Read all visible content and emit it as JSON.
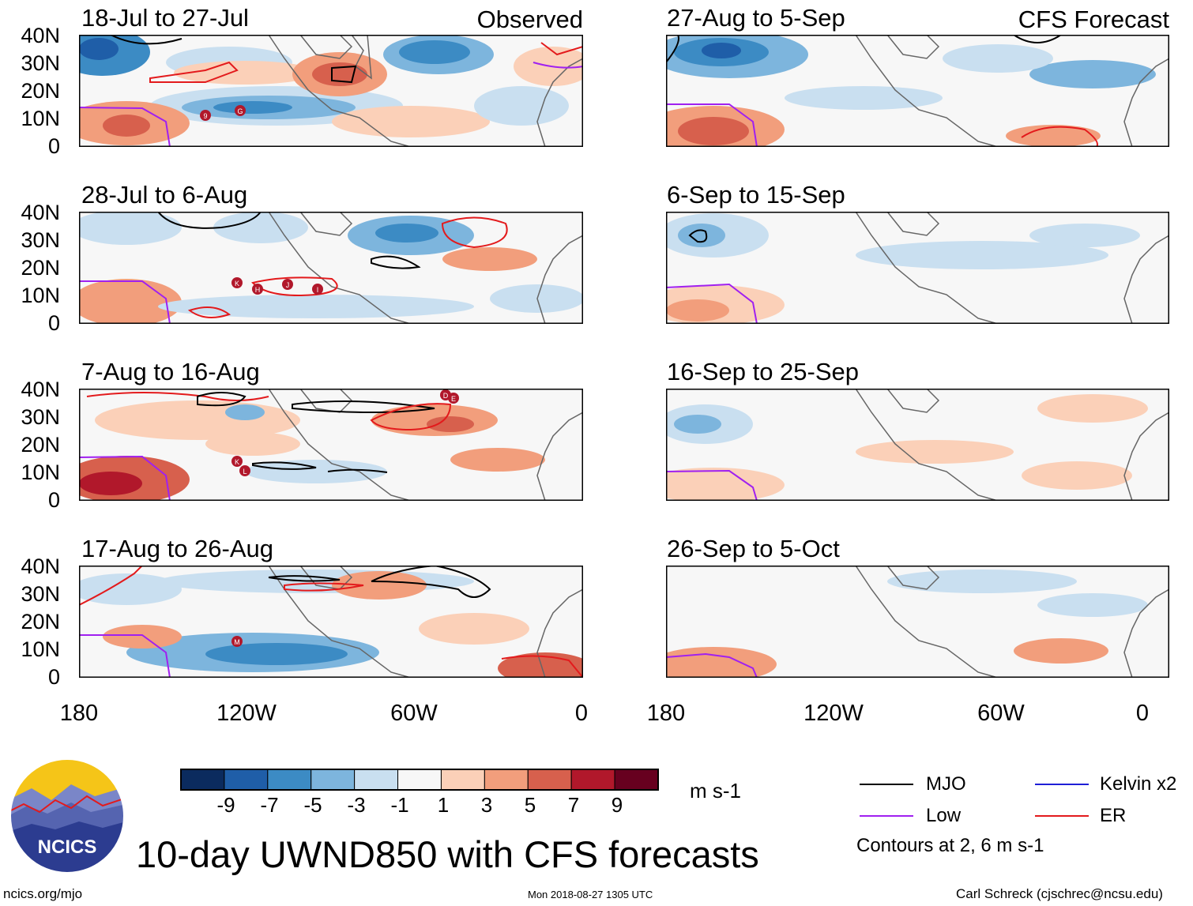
{
  "panels_left": [
    {
      "id": "p1",
      "title": "18-Jul to 27-Jul",
      "tag": "Observed"
    },
    {
      "id": "p2",
      "title": "28-Jul to 6-Aug",
      "tag": ""
    },
    {
      "id": "p3",
      "title": "7-Aug to 16-Aug",
      "tag": ""
    },
    {
      "id": "p4",
      "title": "17-Aug to 26-Aug",
      "tag": ""
    }
  ],
  "panels_right": [
    {
      "id": "p5",
      "title": "27-Aug to 5-Sep",
      "tag": "CFS Forecast"
    },
    {
      "id": "p6",
      "title": "6-Sep to 15-Sep",
      "tag": ""
    },
    {
      "id": "p7",
      "title": "16-Sep to 25-Sep",
      "tag": ""
    },
    {
      "id": "p8",
      "title": "26-Sep to 5-Oct",
      "tag": ""
    }
  ],
  "lat_labels": [
    "40N",
    "30N",
    "20N",
    "10N",
    "0"
  ],
  "lon_labels": [
    "180",
    "120W",
    "60W",
    "0"
  ],
  "storm_markers": {
    "p1": [
      "9",
      "G"
    ],
    "p2": [
      "K",
      "H",
      "J",
      "I"
    ],
    "p3": [
      "D",
      "E",
      "K",
      "L"
    ],
    "p4": [
      "M"
    ]
  },
  "colorbar": {
    "labels": [
      "-9",
      "-7",
      "-5",
      "-3",
      "-1",
      "1",
      "3",
      "5",
      "7",
      "9"
    ],
    "colors": [
      "#0b2b5e",
      "#1f5ea8",
      "#3c8bc4",
      "#7db5dd",
      "#c9dff0",
      "#f7f7f7",
      "#fbd0b8",
      "#f29e7c",
      "#d7604d",
      "#b1182b",
      "#67001f"
    ],
    "units": "m s-1"
  },
  "legend": {
    "items": [
      {
        "label": "MJO",
        "color": "#000000"
      },
      {
        "label": "Kelvin x2",
        "color": "#1f1fd6"
      },
      {
        "label": "Low",
        "color": "#a020f0"
      },
      {
        "label": "ER",
        "color": "#e31a1c"
      }
    ],
    "note": "Contours at 2, 6 m s-1"
  },
  "logo_text": "NCICS",
  "main_title": "10-day UWND850 with CFS forecasts",
  "footer": {
    "left": "ncics.org/mjo",
    "center": "Mon 2018-08-27 1305 UTC",
    "right": "Carl Schreck (cjschrec@ncsu.edu)"
  }
}
